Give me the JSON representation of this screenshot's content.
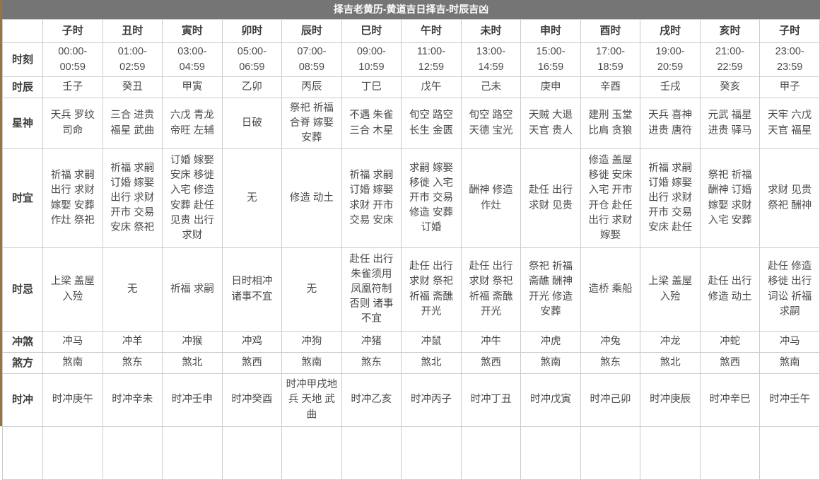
{
  "title": "择吉老黄历-黄道吉日择吉-时辰吉凶",
  "colors": {
    "title_bar_bg": "#757575",
    "title_text": "#ffffff",
    "left_accent_border": "#9a7440",
    "grid_line": "#cccccc",
    "cell_text": "#4a4a4a"
  },
  "table": {
    "hour_headers": [
      "子时",
      "丑时",
      "寅时",
      "卯时",
      "辰时",
      "巳时",
      "午时",
      "未时",
      "申时",
      "酉时",
      "戌时",
      "亥时",
      "子时"
    ],
    "rows": [
      {
        "label": "时刻",
        "cells": [
          "00:00-00:59",
          "01:00-02:59",
          "03:00-04:59",
          "05:00-06:59",
          "07:00-08:59",
          "09:00-10:59",
          "11:00-12:59",
          "13:00-14:59",
          "15:00-16:59",
          "17:00-18:59",
          "19:00-20:59",
          "21:00-22:59",
          "23:00-23:59"
        ]
      },
      {
        "label": "时辰",
        "cells": [
          "壬子",
          "癸丑",
          "甲寅",
          "乙卯",
          "丙辰",
          "丁巳",
          "戊午",
          "己未",
          "庚申",
          "辛酉",
          "壬戌",
          "癸亥",
          "甲子"
        ]
      },
      {
        "label": "星神",
        "cells": [
          "天兵 罗纹 司命",
          "三合 进贵 福星 武曲",
          "六戊 青龙 帝旺 左辅",
          "日破",
          "祭祀 祈福 合脊 嫁娶 安葬",
          "不遇 朱雀 三合 木星",
          "旬空 路空 长生 金匮",
          "旬空 路空 天德 宝光",
          "天贼 大退 天官 贵人",
          "建刑 玉堂 比肩 贪狼",
          "天兵 喜神 进贵 唐符",
          "元武 福星 进贵 驿马",
          "天牢 六戊 天官 福星"
        ]
      },
      {
        "label": "时宜",
        "cells": [
          "祈福 求嗣 出行 求财 嫁娶 安葬 作灶 祭祀",
          "祈福 求嗣 订婚 嫁娶 出行 求财 开市 交易 安床 祭祀",
          "订婚 嫁娶 安床 移徙 入宅 修造 安葬 赴任 见贵 出行 求财",
          "无",
          "修造 动土",
          "祈福 求嗣 订婚 嫁娶 求财 开市 交易 安床",
          "求嗣 嫁娶 移徙 入宅 开市 交易 修造 安葬 订婚",
          "酬神 修造 作灶",
          "赴任 出行 求财 见贵",
          "修造 盖屋 移徙 安床 入宅 开市 开仓 赴任 出行 求财 嫁娶",
          "祈福 求嗣 订婚 嫁娶 出行 求财 开市 交易 安床 赴任",
          "祭祀 祈福 酬神 订婚 嫁娶 求财 入宅 安葬",
          "求财 见贵 祭祀 酬神"
        ]
      },
      {
        "label": "时忌",
        "cells": [
          "上梁 盖屋 入殓",
          "无",
          "祈福 求嗣",
          "日时相冲 诸事不宜",
          "无",
          "赴任 出行 朱雀须用 凤凰符制 否则 诸事 不宜",
          "赴任 出行 求财 祭祀 祈福 斋醮 开光",
          "赴任 出行 求财 祭祀 祈福 斋醮 开光",
          "祭祀 祈福 斋醮 酬神 开光 修造 安葬",
          "造桥 乘船",
          "上梁 盖屋 入殓",
          "赴任 出行 修造 动土",
          "赴任 修造 移徙 出行 词讼 祈福 求嗣"
        ]
      },
      {
        "label": "冲煞",
        "cells": [
          "冲马",
          "冲羊",
          "冲猴",
          "冲鸡",
          "冲狗",
          "冲猪",
          "冲鼠",
          "冲牛",
          "冲虎",
          "冲兔",
          "冲龙",
          "冲蛇",
          "冲马"
        ]
      },
      {
        "label": "煞方",
        "cells": [
          "煞南",
          "煞东",
          "煞北",
          "煞西",
          "煞南",
          "煞东",
          "煞北",
          "煞西",
          "煞南",
          "煞东",
          "煞北",
          "煞西",
          "煞南"
        ]
      },
      {
        "label": "时冲",
        "cells": [
          "时冲庚午",
          "时冲辛未",
          "时冲壬申",
          "时冲癸酉",
          "时冲甲戌地兵 天地 武曲",
          "时冲乙亥",
          "时冲丙子",
          "时冲丁丑",
          "时冲戊寅",
          "时冲己卯",
          "时冲庚辰",
          "时冲辛巳",
          "时冲壬午"
        ]
      }
    ]
  }
}
